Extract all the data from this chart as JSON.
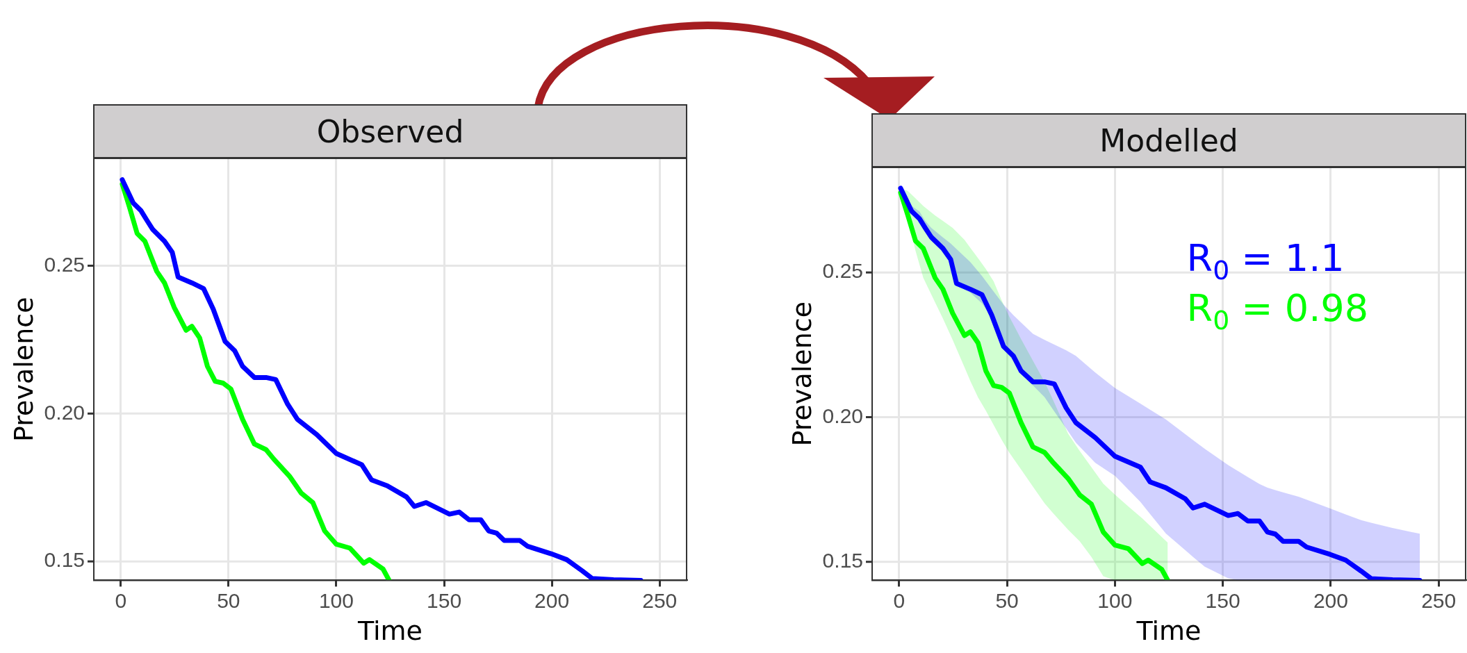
{
  "chart_data": [
    {
      "type": "line",
      "title": "Observed",
      "xlabel": "Time",
      "ylabel": "Prevalence",
      "xlim": [
        -12.5,
        262.5
      ],
      "ylim": [
        0.1436,
        0.2863
      ],
      "xticks": [
        0,
        50,
        100,
        150,
        200,
        250
      ],
      "yticks": [
        {
          "value": 0.15,
          "label": "0.15"
        },
        {
          "value": 0.2,
          "label": "0.20"
        },
        {
          "value": 0.25,
          "label": "0.25"
        }
      ],
      "grid": true,
      "legend": false,
      "marker": "none",
      "line_style": "solid",
      "series": [
        {
          "color": "#0000ff",
          "x": [
            0.7,
            5.8,
            9.4,
            12.1,
            14.9,
            20.3,
            23.9,
            26.6,
            33,
            38.4,
            42.9,
            48.4,
            52.9,
            56.5,
            62,
            67.4,
            71.9,
            77.4,
            81.9,
            90.9,
            100,
            111.8,
            116.3,
            123.6,
            132.6,
            136.2,
            141.6,
            152.5,
            157,
            161.6,
            167,
            170.7,
            174.3,
            177.9,
            185.1,
            188.8,
            199.6,
            206.9,
            214.1,
            218.7,
            228.6,
            241.3
          ],
          "values": [
            0.2791,
            0.2712,
            0.2686,
            0.2654,
            0.2622,
            0.2583,
            0.2545,
            0.2462,
            0.2442,
            0.2423,
            0.2353,
            0.2244,
            0.2212,
            0.216,
            0.2122,
            0.2122,
            0.2115,
            0.2032,
            0.1981,
            0.1929,
            0.1865,
            0.1827,
            0.1776,
            0.1756,
            0.1718,
            0.1686,
            0.1699,
            0.166,
            0.1667,
            0.1641,
            0.1641,
            0.1603,
            0.1596,
            0.1571,
            0.1571,
            0.1551,
            0.1526,
            0.1506,
            0.1468,
            0.1442,
            0.1438,
            0.1436
          ]
        },
        {
          "color": "#00ff00",
          "x": [
            0.7,
            4,
            7.6,
            11.2,
            16.7,
            20.3,
            24.8,
            30.3,
            33,
            36.6,
            40.2,
            43.8,
            47.5,
            51.1,
            56.5,
            62,
            67.4,
            71,
            78.3,
            83.7,
            89.1,
            94.6,
            100,
            106.3,
            112.7,
            115.4,
            121.7,
            124.5
          ],
          "values": [
            0.2776,
            0.2699,
            0.2609,
            0.2583,
            0.2481,
            0.2442,
            0.2359,
            0.2282,
            0.2295,
            0.2256,
            0.216,
            0.2109,
            0.2103,
            0.2083,
            0.1981,
            0.1897,
            0.1878,
            0.1846,
            0.1788,
            0.1731,
            0.1699,
            0.1603,
            0.1558,
            0.1545,
            0.1494,
            0.1506,
            0.1474,
            0.1436
          ]
        }
      ]
    },
    {
      "type": "line",
      "title": "Modelled",
      "xlabel": "Time",
      "ylabel": "Prevalence",
      "xlim": [
        -12.5,
        262.5
      ],
      "ylim": [
        0.1436,
        0.2863
      ],
      "xticks": [
        0,
        50,
        100,
        150,
        200,
        250
      ],
      "yticks": [
        {
          "value": 0.15,
          "label": "0.15"
        },
        {
          "value": 0.2,
          "label": "0.20"
        },
        {
          "value": 0.25,
          "label": "0.25"
        }
      ],
      "grid": true,
      "legend": false,
      "marker": "none",
      "line_style": "solid",
      "annotations": [
        "R$_{0}$ = 1.1",
        "R$_{0}$ = 0.98"
      ],
      "series": [
        {
          "color": "#0000ff",
          "x": [
            0.7,
            5.8,
            9.4,
            12.1,
            14.9,
            20.3,
            23.9,
            26.6,
            33,
            38.4,
            42.9,
            48.4,
            52.9,
            56.5,
            62,
            67.4,
            71.9,
            77.4,
            81.9,
            90.9,
            100,
            111.8,
            116.3,
            123.6,
            132.6,
            136.2,
            141.6,
            152.5,
            157,
            161.6,
            167,
            170.7,
            174.3,
            177.9,
            185.1,
            188.8,
            199.6,
            206.9,
            214.1,
            218.7,
            228.6,
            241.3
          ],
          "values": [
            0.2791,
            0.2712,
            0.2686,
            0.2654,
            0.2622,
            0.2583,
            0.2545,
            0.2462,
            0.2442,
            0.2423,
            0.2353,
            0.2244,
            0.2212,
            0.216,
            0.2122,
            0.2122,
            0.2115,
            0.2032,
            0.1981,
            0.1929,
            0.1865,
            0.1827,
            0.1776,
            0.1756,
            0.1718,
            0.1686,
            0.1699,
            0.166,
            0.1667,
            0.1641,
            0.1641,
            0.1603,
            0.1596,
            0.1571,
            0.1571,
            0.1551,
            0.1526,
            0.1506,
            0.1468,
            0.1442,
            0.1438,
            0.1436
          ],
          "lower": [
            0.2787,
            0.2705,
            0.2675,
            0.264,
            0.261,
            0.2572,
            0.2538,
            0.2455,
            0.243,
            0.2393,
            0.2345,
            0.2235,
            0.2195,
            0.215,
            0.211,
            0.2069,
            0.202,
            0.1961,
            0.1912,
            0.1842,
            0.1797,
            0.1707,
            0.1665,
            0.1598,
            0.154,
            0.1517,
            0.1483,
            0.1443,
            0.1436,
            0.1436,
            0.1436,
            0.1436,
            0.1436,
            0.1436,
            0.1436,
            0.1436,
            0.1436,
            0.1436,
            0.1436,
            0.1436,
            0.1436,
            0.1436
          ],
          "upper": [
            0.2795,
            0.273,
            0.2711,
            0.2678,
            0.2654,
            0.2621,
            0.26,
            0.2581,
            0.2536,
            0.2488,
            0.2443,
            0.2389,
            0.2353,
            0.2327,
            0.2288,
            0.2267,
            0.2251,
            0.2231,
            0.2212,
            0.2154,
            0.2101,
            0.2047,
            0.2026,
            0.1992,
            0.1941,
            0.1921,
            0.1891,
            0.1834,
            0.1814,
            0.1793,
            0.1769,
            0.1756,
            0.1748,
            0.174,
            0.1725,
            0.1715,
            0.1685,
            0.1664,
            0.1644,
            0.1635,
            0.1617,
            0.1597
          ]
        },
        {
          "color": "#00ff00",
          "x": [
            0.7,
            4,
            7.6,
            11.2,
            16.7,
            20.3,
            24.8,
            30.3,
            33,
            36.6,
            40.2,
            43.8,
            47.5,
            51.1,
            56.5,
            62,
            67.4,
            71,
            78.3,
            83.7,
            89.1,
            94.6,
            100,
            106.3,
            112.7,
            115.4,
            121.7,
            124.5
          ],
          "values": [
            0.2776,
            0.2699,
            0.2609,
            0.2583,
            0.2481,
            0.2442,
            0.2359,
            0.2282,
            0.2295,
            0.2256,
            0.216,
            0.2109,
            0.2103,
            0.2083,
            0.1981,
            0.1897,
            0.1878,
            0.1846,
            0.1788,
            0.1731,
            0.1699,
            0.1603,
            0.1558,
            0.1545,
            0.1494,
            0.1506,
            0.1474,
            0.1436
          ],
          "lower": [
            0.2775,
            0.269,
            0.2575,
            0.2481,
            0.2396,
            0.2341,
            0.2267,
            0.2172,
            0.2125,
            0.2068,
            0.2022,
            0.1973,
            0.1922,
            0.1877,
            0.1819,
            0.176,
            0.1702,
            0.1671,
            0.1611,
            0.1571,
            0.1517,
            0.145,
            0.1436,
            0.1436,
            0.1436,
            0.1436,
            0.1436,
            0.1436
          ],
          "upper": [
            0.279,
            0.2782,
            0.2756,
            0.273,
            0.2697,
            0.2678,
            0.2654,
            0.2613,
            0.2585,
            0.2549,
            0.2512,
            0.2469,
            0.2404,
            0.2347,
            0.227,
            0.2195,
            0.2122,
            0.2065,
            0.1943,
            0.1883,
            0.1827,
            0.177,
            0.1732,
            0.1691,
            0.165,
            0.1631,
            0.1586,
            0.1566
          ]
        }
      ]
    }
  ]
}
